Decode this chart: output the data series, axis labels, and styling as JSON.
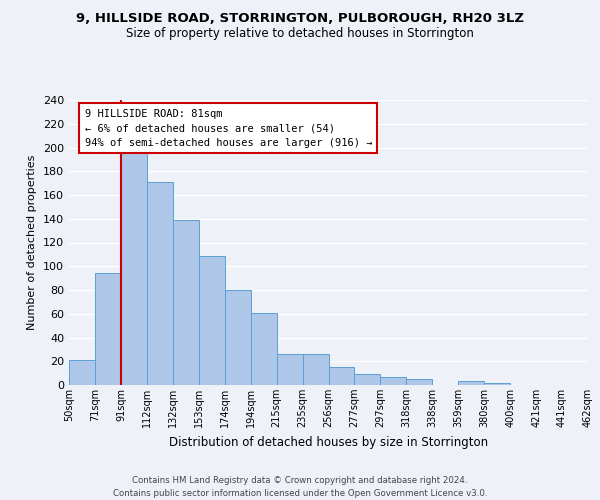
{
  "title": "9, HILLSIDE ROAD, STORRINGTON, PULBOROUGH, RH20 3LZ",
  "subtitle": "Size of property relative to detached houses in Storrington",
  "xlabel": "Distribution of detached houses by size in Storrington",
  "ylabel": "Number of detached properties",
  "bin_edges": [
    "50sqm",
    "71sqm",
    "91sqm",
    "112sqm",
    "132sqm",
    "153sqm",
    "174sqm",
    "194sqm",
    "215sqm",
    "235sqm",
    "256sqm",
    "277sqm",
    "297sqm",
    "318sqm",
    "338sqm",
    "359sqm",
    "380sqm",
    "400sqm",
    "421sqm",
    "441sqm",
    "462sqm"
  ],
  "bar_heights": [
    21,
    94,
    201,
    171,
    139,
    109,
    80,
    61,
    26,
    26,
    15,
    9,
    7,
    5,
    0,
    3,
    2,
    0,
    0,
    0
  ],
  "bar_color": "#aec6e8",
  "bar_edge_color": "#5a9fd4",
  "vline_color": "#cc0000",
  "annotation_title": "9 HILLSIDE ROAD: 81sqm",
  "annotation_line1": "← 6% of detached houses are smaller (54)",
  "annotation_line2": "94% of semi-detached houses are larger (916) →",
  "annotation_box_color": "#ffffff",
  "annotation_box_edgecolor": "#cc0000",
  "ylim": [
    0,
    240
  ],
  "yticks": [
    0,
    20,
    40,
    60,
    80,
    100,
    120,
    140,
    160,
    180,
    200,
    220,
    240
  ],
  "footer_line1": "Contains HM Land Registry data © Crown copyright and database right 2024.",
  "footer_line2": "Contains public sector information licensed under the Open Government Licence v3.0.",
  "bg_color": "#eef2f8",
  "grid_color": "#ffffff"
}
